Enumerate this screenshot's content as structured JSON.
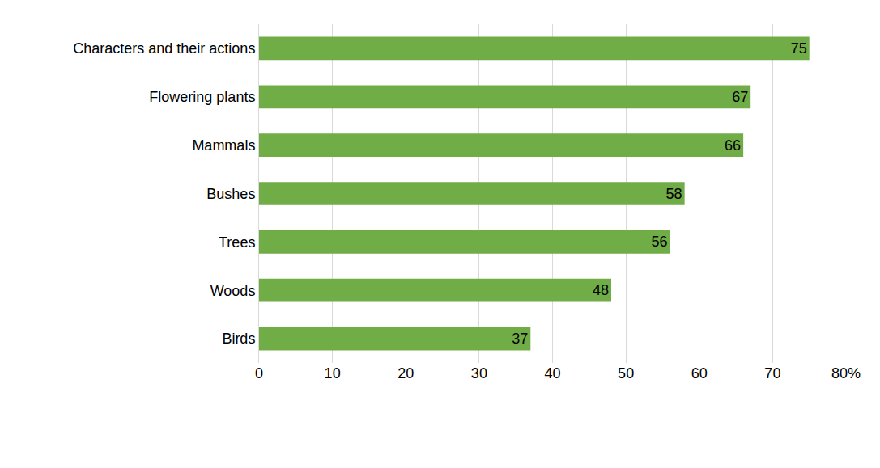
{
  "chart_data": {
    "type": "bar",
    "orientation": "horizontal",
    "categories": [
      "Characters and their actions",
      "Flowering plants",
      "Mammals",
      "Bushes",
      "Trees",
      "Woods",
      "Birds"
    ],
    "values": [
      75,
      67,
      66,
      58,
      56,
      48,
      37
    ],
    "color": "#70ad47",
    "xlim": [
      0,
      80
    ],
    "xticks": [
      0,
      10,
      20,
      30,
      40,
      50,
      60,
      70,
      {
        "value": 80,
        "label": "80%"
      }
    ],
    "grid": true,
    "data_labels": true
  }
}
